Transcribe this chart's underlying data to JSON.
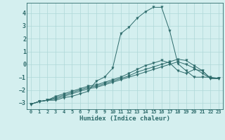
{
  "xlabel": "Humidex (Indice chaleur)",
  "background_color": "#d4efef",
  "grid_color": "#aed8d8",
  "line_color": "#2d6b6b",
  "x": [
    0,
    1,
    2,
    3,
    4,
    5,
    6,
    7,
    8,
    9,
    10,
    11,
    12,
    13,
    14,
    15,
    16,
    17,
    18,
    19,
    20,
    21,
    22,
    23
  ],
  "series1": [
    -3.1,
    -2.9,
    -2.8,
    -2.8,
    -2.6,
    -2.5,
    -2.3,
    -2.1,
    -1.3,
    -1.0,
    -0.3,
    2.4,
    2.9,
    3.6,
    4.1,
    4.45,
    4.45,
    2.6,
    0.05,
    -0.5,
    -1.0,
    -1.0,
    -1.0,
    -1.1
  ],
  "series2": [
    -3.1,
    -2.9,
    -2.8,
    -2.5,
    -2.3,
    -2.1,
    -1.9,
    -1.7,
    -1.6,
    -1.4,
    -1.2,
    -1.0,
    -0.7,
    -0.4,
    -0.1,
    0.1,
    0.3,
    0.1,
    -0.5,
    -0.7,
    -0.4,
    -0.5,
    -1.1,
    -1.1
  ],
  "series3": [
    -3.1,
    -2.9,
    -2.8,
    -2.6,
    -2.4,
    -2.2,
    -2.0,
    -1.8,
    -1.7,
    -1.5,
    -1.3,
    -1.1,
    -0.9,
    -0.6,
    -0.4,
    -0.2,
    0.0,
    0.2,
    0.4,
    0.3,
    -0.1,
    -0.5,
    -1.1,
    -1.1
  ],
  "series4": [
    -3.1,
    -2.9,
    -2.8,
    -2.7,
    -2.5,
    -2.3,
    -2.1,
    -1.9,
    -1.8,
    -1.6,
    -1.4,
    -1.2,
    -1.0,
    -0.8,
    -0.6,
    -0.4,
    -0.2,
    0.0,
    0.2,
    0.0,
    -0.3,
    -0.7,
    -1.1,
    -1.1
  ],
  "ylim": [
    -3.5,
    4.8
  ],
  "yticks": [
    -3,
    -2,
    -1,
    0,
    1,
    2,
    3,
    4
  ],
  "xticks": [
    0,
    1,
    2,
    3,
    4,
    5,
    6,
    7,
    8,
    9,
    10,
    11,
    12,
    13,
    14,
    15,
    16,
    17,
    18,
    19,
    20,
    21,
    22,
    23
  ]
}
